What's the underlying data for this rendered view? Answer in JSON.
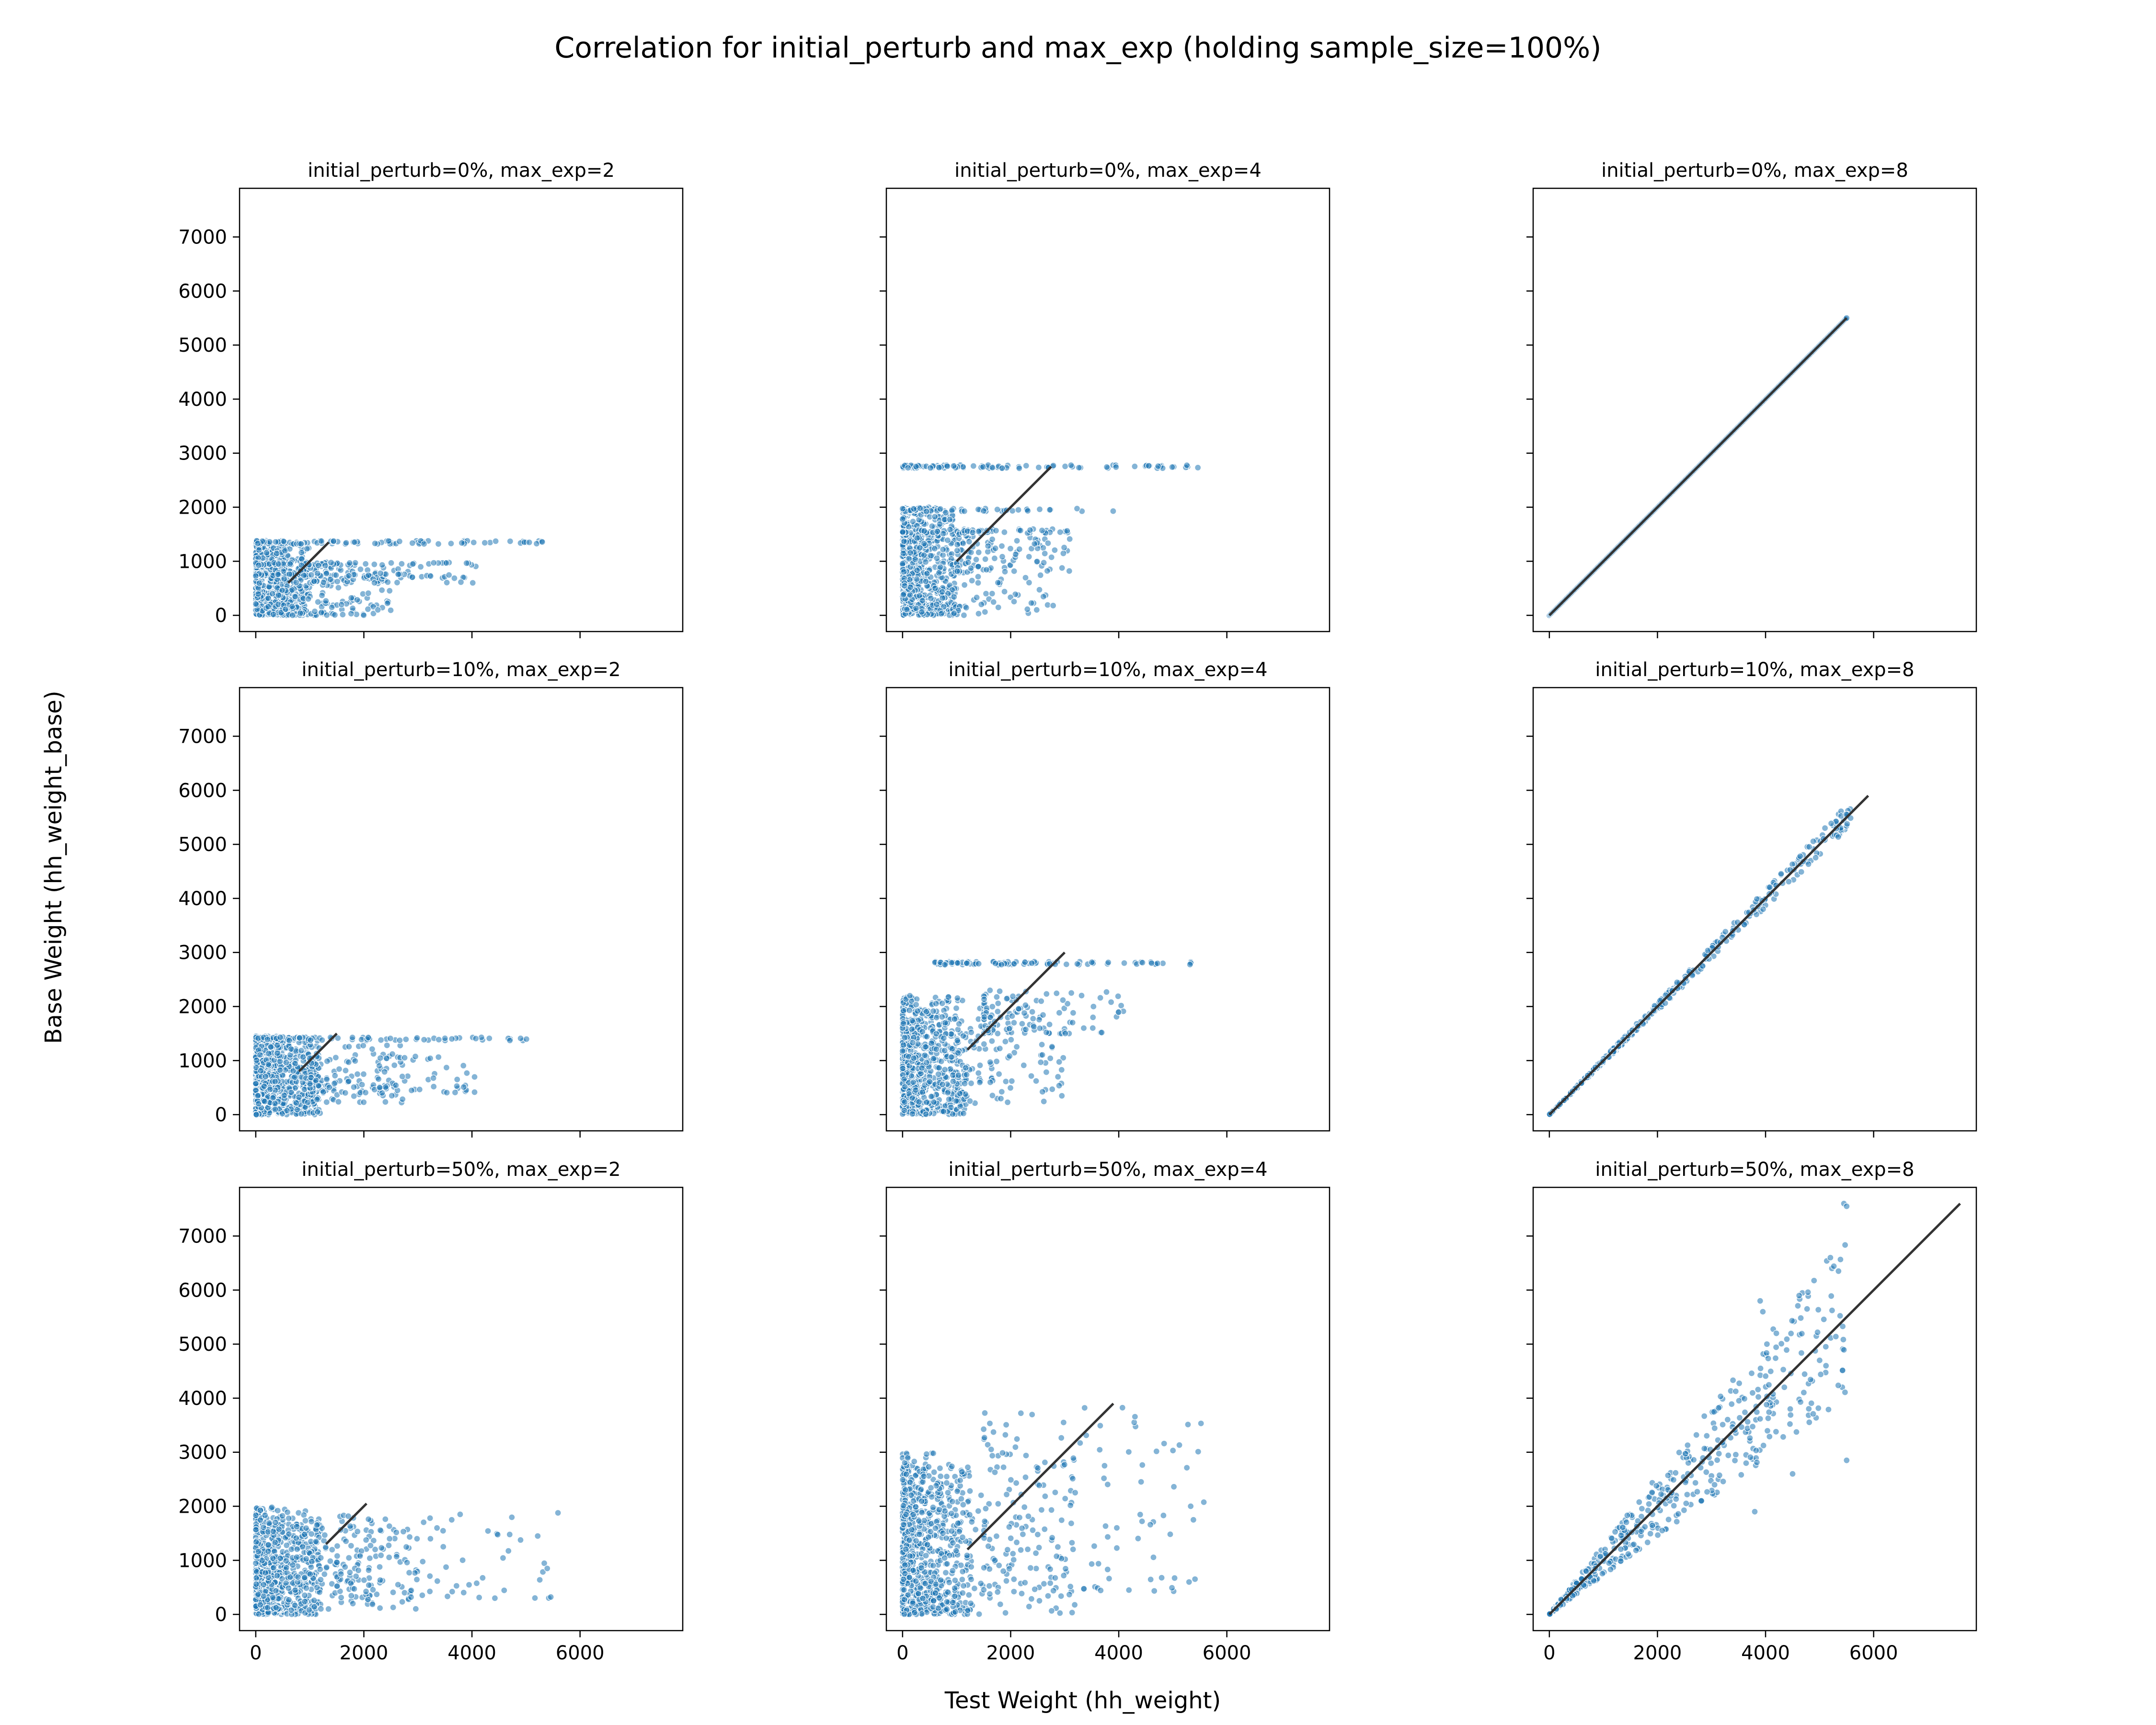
{
  "figure": {
    "title": "Correlation for initial_perturb and max_exp (holding sample_size=100%)",
    "xlabel": "Test Weight (hh_weight)",
    "ylabel": "Base Weight (hh_weight_base)",
    "point_color": "#1f77b4",
    "line_color": "#333333"
  },
  "chart_data": [
    {
      "type": "scatter",
      "title": "initial_perturb=0%, max_exp=2",
      "xlim": [
        -300,
        7900
      ],
      "ylim": [
        -300,
        7900
      ],
      "xticks": [
        0,
        2000,
        4000,
        6000
      ],
      "yticks": [
        0,
        1000,
        2000,
        3000,
        4000,
        5000,
        6000,
        7000
      ],
      "show_xticklabels": false,
      "show_yticklabels": true,
      "clusters": [
        {
          "x": [
            0,
            1000
          ],
          "y": [
            0,
            1300
          ],
          "n": 520
        },
        {
          "x": [
            0,
            2500
          ],
          "y": [
            0,
            950
          ],
          "n": 200
        },
        {
          "x": [
            1000,
            4100
          ],
          "y": [
            600,
            1000
          ],
          "n": 70
        }
      ],
      "rows": [
        {
          "y": 1350,
          "x": [
            0,
            5600
          ],
          "n": 95
        },
        {
          "y": 950,
          "x": [
            0,
            4100
          ],
          "n": 60
        },
        {
          "y": 750,
          "x": [
            0,
            3300
          ],
          "n": 45
        }
      ],
      "identity_line": [
        600,
        1350
      ]
    },
    {
      "type": "scatter",
      "title": "initial_perturb=0%, max_exp=4",
      "xlim": [
        -300,
        7900
      ],
      "ylim": [
        -300,
        7900
      ],
      "xticks": [
        0,
        2000,
        4000,
        6000
      ],
      "yticks": [
        0,
        1000,
        2000,
        3000,
        4000,
        5000,
        6000,
        7000
      ],
      "show_xticklabels": false,
      "show_yticklabels": false,
      "clusters": [
        {
          "x": [
            0,
            1000
          ],
          "y": [
            0,
            2000
          ],
          "n": 520
        },
        {
          "x": [
            0,
            2800
          ],
          "y": [
            0,
            1600
          ],
          "n": 200
        },
        {
          "x": [
            1000,
            3100
          ],
          "y": [
            800,
            1600
          ],
          "n": 80
        }
      ],
      "rows": [
        {
          "y": 2750,
          "x": [
            0,
            5500
          ],
          "n": 95
        },
        {
          "y": 1950,
          "x": [
            0,
            4100
          ],
          "n": 60
        },
        {
          "y": 1550,
          "x": [
            0,
            3100
          ],
          "n": 45
        }
      ],
      "identity_line": [
        1000,
        2750
      ]
    },
    {
      "type": "scatter",
      "title": "initial_perturb=0%, max_exp=8",
      "xlim": [
        -300,
        7900
      ],
      "ylim": [
        -300,
        7900
      ],
      "xticks": [
        0,
        2000,
        4000,
        6000
      ],
      "yticks": [
        0,
        1000,
        2000,
        3000,
        4000,
        5000,
        6000,
        7000
      ],
      "show_xticklabels": false,
      "show_yticklabels": false,
      "diag": {
        "max": 5500,
        "n": 340,
        "spread": 0
      },
      "identity_line": [
        0,
        5500
      ]
    },
    {
      "type": "scatter",
      "title": "initial_perturb=10%, max_exp=2",
      "xlim": [
        -300,
        7900
      ],
      "ylim": [
        -300,
        7900
      ],
      "xticks": [
        0,
        2000,
        4000,
        6000
      ],
      "yticks": [
        0,
        1000,
        2000,
        3000,
        4000,
        5000,
        6000,
        7000
      ],
      "show_xticklabels": false,
      "show_yticklabels": true,
      "clusters": [
        {
          "x": [
            0,
            1200
          ],
          "y": [
            0,
            1450
          ],
          "n": 560
        },
        {
          "x": [
            0,
            2800
          ],
          "y": [
            200,
            1300
          ],
          "n": 220
        },
        {
          "x": [
            1000,
            4100
          ],
          "y": [
            400,
            1100
          ],
          "n": 90
        }
      ],
      "rows": [
        {
          "y": 1400,
          "x": [
            0,
            5600
          ],
          "n": 80
        }
      ],
      "identity_line": [
        800,
        1500
      ]
    },
    {
      "type": "scatter",
      "title": "initial_perturb=10%, max_exp=4",
      "xlim": [
        -300,
        7900
      ],
      "ylim": [
        -300,
        7900
      ],
      "xticks": [
        0,
        2000,
        4000,
        6000
      ],
      "yticks": [
        0,
        1000,
        2000,
        3000,
        4000,
        5000,
        6000,
        7000
      ],
      "show_xticklabels": false,
      "show_yticklabels": false,
      "clusters": [
        {
          "x": [
            0,
            1200
          ],
          "y": [
            0,
            2200
          ],
          "n": 560
        },
        {
          "x": [
            0,
            3000
          ],
          "y": [
            200,
            2000
          ],
          "n": 220
        },
        {
          "x": [
            1500,
            4100
          ],
          "y": [
            1500,
            2300
          ],
          "n": 100
        }
      ],
      "rows": [
        {
          "y": 2800,
          "x": [
            600,
            5500
          ],
          "n": 90
        }
      ],
      "identity_line": [
        1200,
        3000
      ]
    },
    {
      "type": "scatter",
      "title": "initial_perturb=10%, max_exp=8",
      "xlim": [
        -300,
        7900
      ],
      "ylim": [
        -300,
        7900
      ],
      "xticks": [
        0,
        2000,
        4000,
        6000
      ],
      "yticks": [
        0,
        1000,
        2000,
        3000,
        4000,
        5000,
        6000,
        7000
      ],
      "show_xticklabels": false,
      "show_yticklabels": false,
      "diag": {
        "max": 5600,
        "n": 420,
        "spread": 0.04
      },
      "identity_line": [
        0,
        5900
      ]
    },
    {
      "type": "scatter",
      "title": "initial_perturb=50%, max_exp=2",
      "xlim": [
        -300,
        7900
      ],
      "ylim": [
        -300,
        7900
      ],
      "xticks": [
        0,
        2000,
        4000,
        6000
      ],
      "yticks": [
        0,
        1000,
        2000,
        3000,
        4000,
        5000,
        6000,
        7000
      ],
      "show_xticklabels": true,
      "show_yticklabels": true,
      "clusters": [
        {
          "x": [
            0,
            1200
          ],
          "y": [
            0,
            2000
          ],
          "n": 560
        },
        {
          "x": [
            0,
            3000
          ],
          "y": [
            100,
            1700
          ],
          "n": 240
        },
        {
          "x": [
            1500,
            5600
          ],
          "y": [
            300,
            1900
          ],
          "n": 110
        }
      ],
      "rows": [],
      "identity_line": [
        1300,
        2050
      ]
    },
    {
      "type": "scatter",
      "title": "initial_perturb=50%, max_exp=4",
      "xlim": [
        -300,
        7900
      ],
      "ylim": [
        -300,
        7900
      ],
      "xticks": [
        0,
        2000,
        4000,
        6000
      ],
      "yticks": [
        0,
        1000,
        2000,
        3000,
        4000,
        5000,
        6000,
        7000
      ],
      "show_xticklabels": true,
      "show_yticklabels": false,
      "clusters": [
        {
          "x": [
            0,
            1300
          ],
          "y": [
            0,
            2800
          ],
          "n": 560
        },
        {
          "x": [
            0,
            3200
          ],
          "y": [
            0,
            3000
          ],
          "n": 260
        },
        {
          "x": [
            1500,
            5600
          ],
          "y": [
            400,
            3900
          ],
          "n": 130
        }
      ],
      "rows": [],
      "identity_line": [
        1200,
        3900
      ]
    },
    {
      "type": "scatter",
      "title": "initial_perturb=50%, max_exp=8",
      "xlim": [
        -300,
        7900
      ],
      "ylim": [
        -300,
        7900
      ],
      "xticks": [
        0,
        2000,
        4000,
        6000
      ],
      "yticks": [
        0,
        1000,
        2000,
        3000,
        4000,
        5000,
        6000,
        7000
      ],
      "show_xticklabels": true,
      "show_yticklabels": false,
      "diag": {
        "max": 5500,
        "n": 520,
        "spread": 0.28
      },
      "outliers": [
        [
          5450,
          7600
        ],
        [
          5500,
          7550
        ],
        [
          5200,
          6600
        ],
        [
          5350,
          6350
        ],
        [
          5500,
          2850
        ],
        [
          3900,
          5800
        ],
        [
          4200,
          5200
        ],
        [
          3950,
          5600
        ],
        [
          3800,
          1900
        ],
        [
          4500,
          2600
        ],
        [
          5000,
          4700
        ]
      ],
      "identity_line": [
        0,
        7600
      ]
    }
  ]
}
